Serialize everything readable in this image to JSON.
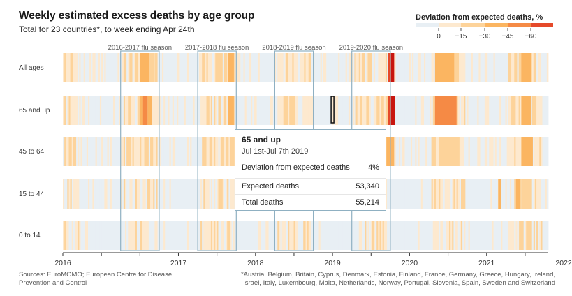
{
  "header": {
    "title": "Weekly estimated excess deaths by age group",
    "subtitle": "Total for 23 countries*, to week ending Apr 24th"
  },
  "legend": {
    "title": "Deviation from expected deaths, %",
    "ticks": [
      "0",
      "+15",
      "+30",
      "+45",
      "+60"
    ],
    "colors": [
      "#e8eff4",
      "#fde9cf",
      "#fdd39a",
      "#fbb561",
      "#f58a45",
      "#e5492a",
      "#c8160f"
    ]
  },
  "chart_data": {
    "type": "heatmap",
    "title": "Weekly estimated excess deaths by age group",
    "subtitle": "Total for 23 countries*, to week ending Apr 24th",
    "rows": [
      "All ages",
      "65 and up",
      "45 to 64",
      "15 to 44",
      "0 to 14"
    ],
    "x_axis": {
      "ticks": [
        "2016",
        "2017",
        "2018",
        "2019",
        "2020",
        "2021",
        "2022"
      ],
      "range": [
        "2016-01",
        "2022-04"
      ]
    },
    "flu_seasons": [
      {
        "label": "2016-2017 flu season",
        "start": "2016-10",
        "end": "2017-04"
      },
      {
        "label": "2017-2018 flu season",
        "start": "2017-10",
        "end": "2018-04"
      },
      {
        "label": "2018-2019 flu season",
        "start": "2018-10",
        "end": "2019-04"
      },
      {
        "label": "2019-2020 flu season",
        "start": "2019-10",
        "end": "2020-04"
      }
    ],
    "highlight_bands": [
      {
        "row": "All ages",
        "spans": [
          {
            "start": 2017.0,
            "end": 2017.12,
            "value": 20
          },
          {
            "start": 2017.12,
            "end": 2017.18,
            "value": 12
          },
          {
            "start": 2018.0,
            "end": 2018.03,
            "value": 16
          },
          {
            "start": 2018.14,
            "end": 2018.22,
            "value": 20
          },
          {
            "start": 2020.22,
            "end": 2020.26,
            "value": 50
          },
          {
            "start": 2020.26,
            "end": 2020.3,
            "value": 65
          },
          {
            "start": 2020.83,
            "end": 2021.08,
            "value": 28
          },
          {
            "start": 2021.08,
            "end": 2021.14,
            "value": 18
          },
          {
            "start": 2021.95,
            "end": 2022.08,
            "value": 26
          }
        ]
      },
      {
        "row": "65 and up",
        "spans": [
          {
            "start": 2017.0,
            "end": 2017.04,
            "value": 20
          },
          {
            "start": 2017.04,
            "end": 2017.1,
            "value": 40
          },
          {
            "start": 2017.1,
            "end": 2017.16,
            "value": 22
          },
          {
            "start": 2018.02,
            "end": 2018.05,
            "value": 18
          },
          {
            "start": 2018.14,
            "end": 2018.22,
            "value": 24
          },
          {
            "start": 2020.22,
            "end": 2020.26,
            "value": 55
          },
          {
            "start": 2020.26,
            "end": 2020.31,
            "value": 62
          },
          {
            "start": 2020.83,
            "end": 2021.0,
            "value": 34
          },
          {
            "start": 2021.0,
            "end": 2021.11,
            "value": 44
          },
          {
            "start": 2021.95,
            "end": 2022.08,
            "value": 30
          }
        ]
      },
      {
        "row": "45 to 64",
        "spans": [
          {
            "start": 2018.18,
            "end": 2018.21,
            "value": 18
          },
          {
            "start": 2020.2,
            "end": 2020.3,
            "value": 22
          },
          {
            "start": 2020.88,
            "end": 2021.14,
            "value": 18
          },
          {
            "start": 2021.95,
            "end": 2022.1,
            "value": 24
          }
        ]
      },
      {
        "row": "15 to 44",
        "spans": [
          {
            "start": 2021.65,
            "end": 2021.69,
            "value": 20
          },
          {
            "start": 2021.88,
            "end": 2021.93,
            "value": 22
          },
          {
            "start": 2021.96,
            "end": 2022.06,
            "value": 18
          }
        ]
      },
      {
        "row": "0 to 14",
        "spans": [
          {
            "start": 2017.0,
            "end": 2017.03,
            "value": 16
          },
          {
            "start": 2019.12,
            "end": 2019.15,
            "value": 18
          },
          {
            "start": 2021.92,
            "end": 2021.98,
            "value": 18
          }
        ]
      }
    ],
    "selected_cell": {
      "row": "65 and up",
      "week": "Jul 1st-Jul 7th 2019"
    }
  },
  "tooltip": {
    "title": "65 and up",
    "date": "Jul 1st-Jul 7th 2019",
    "rows": [
      {
        "label": "Deviation from expected deaths",
        "value": "4%"
      },
      {
        "label": "Expected deaths",
        "value": "53,340"
      },
      {
        "label": "Total deaths",
        "value": "55,214"
      }
    ]
  },
  "footer": {
    "source": "Sources: EuroMOMO; European Centre for Disease Prevention and Control",
    "note": "*Austria, Belgium, Britain, Cyprus, Denmark, Estonia, Finland, France, Germany, Greece, Hungary, Ireland, Israel, Italy, Luxembourg, Malta, Netherlands, Norway, Portugal, Slovenia, Spain, Sweden and Switzerland"
  }
}
